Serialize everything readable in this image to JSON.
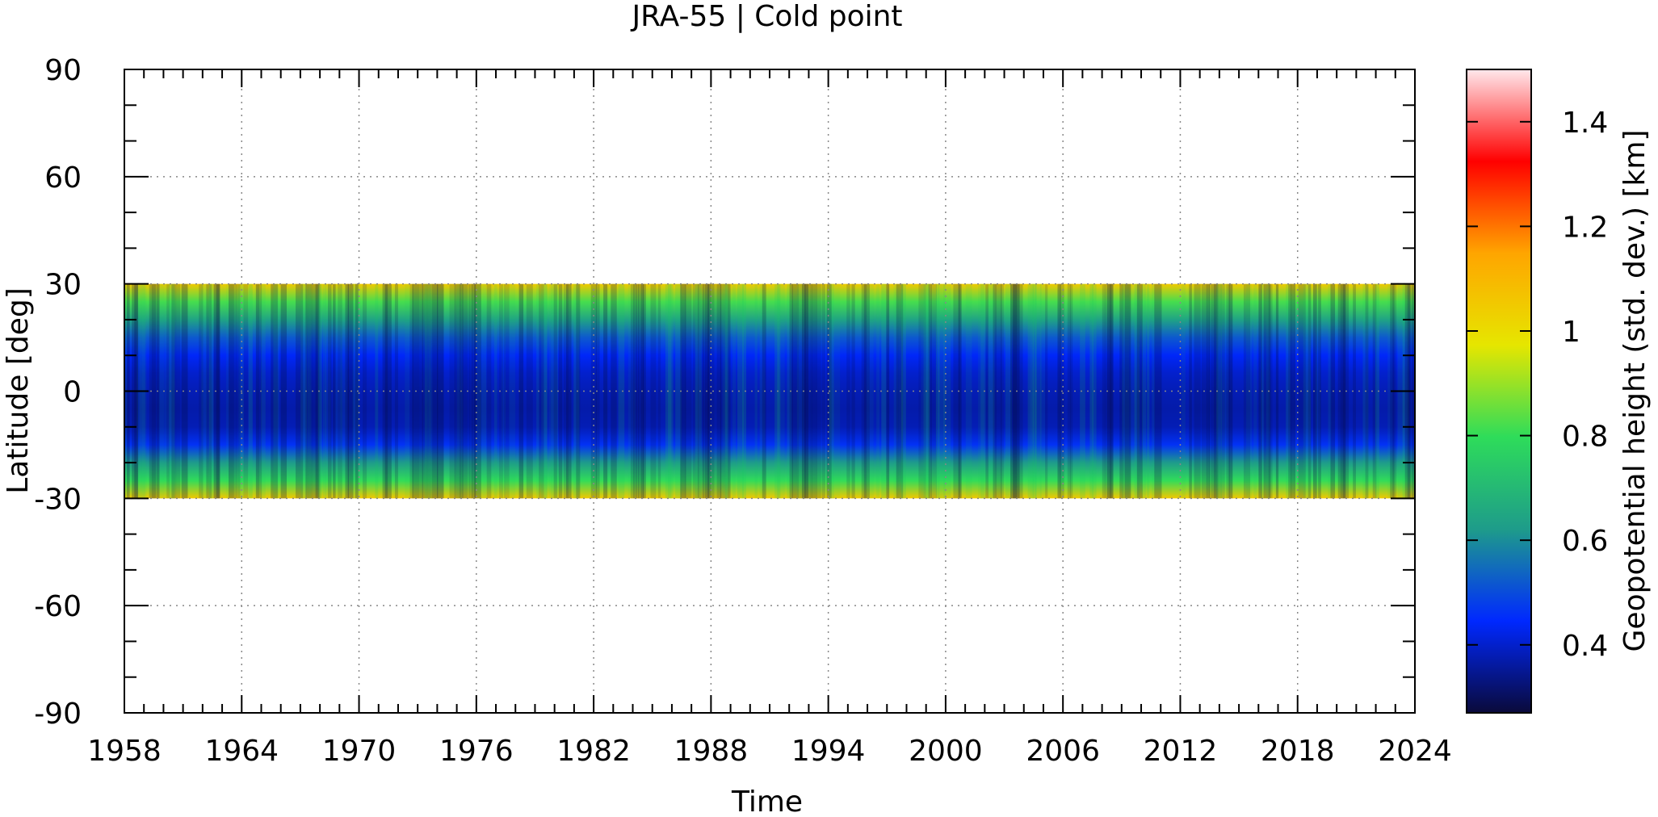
{
  "chart_data": {
    "type": "heatmap",
    "title": "JRA-55 | Cold point",
    "xlabel": "Time",
    "ylabel": "Latitude [deg]",
    "xlim": [
      1958,
      2024
    ],
    "ylim": [
      -90,
      90
    ],
    "x_ticks": [
      "1958",
      "1964",
      "1970",
      "1976",
      "1982",
      "1988",
      "1994",
      "2000",
      "2006",
      "2012",
      "2018",
      "2024"
    ],
    "y_ticks": [
      "90",
      "60",
      "30",
      "0",
      "-30",
      "-60",
      "-90"
    ],
    "grid": true,
    "data_extent": {
      "lat_min": -30,
      "lat_max": 30,
      "time_start": 1958,
      "time_end": 2024
    },
    "colorbar": {
      "label": "Geopotential height (std. dev.) [km]",
      "range": [
        0.27,
        1.5
      ],
      "ticks": [
        "1.4",
        "1.2",
        "1",
        "0.8",
        "0.6",
        "0.4"
      ],
      "tick_values": [
        1.4,
        1.2,
        1.0,
        0.8,
        0.6,
        0.4
      ],
      "colormap": [
        "#ffe8ec",
        "#ff0000",
        "#ffa500",
        "#e6e600",
        "#2edc5a",
        "#1e9c8a",
        "#0028ff",
        "#0a0a3a"
      ]
    },
    "profile": {
      "lat": [
        30,
        25,
        20,
        15,
        10,
        5,
        0,
        -5,
        -10,
        -15,
        -20,
        -25,
        -30
      ],
      "value": [
        1.05,
        0.82,
        0.64,
        0.52,
        0.44,
        0.4,
        0.38,
        0.37,
        0.38,
        0.46,
        0.62,
        0.8,
        1.05
      ]
    }
  }
}
